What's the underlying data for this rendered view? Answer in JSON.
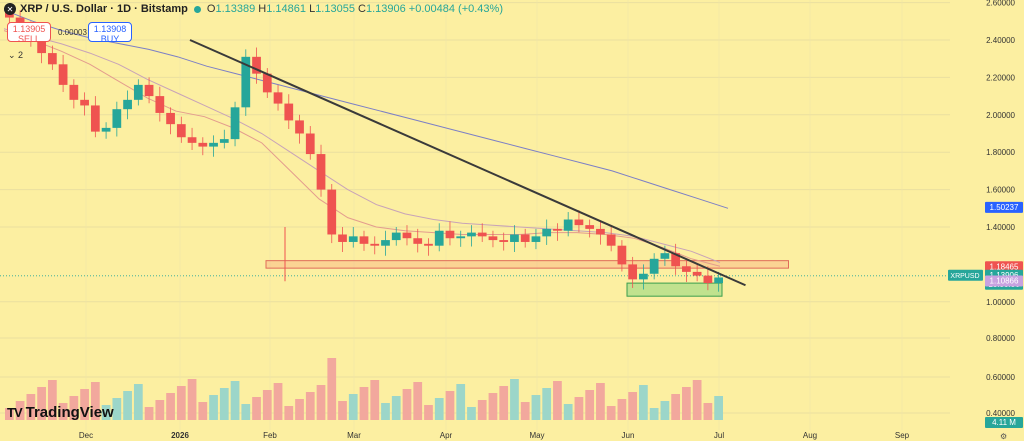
{
  "header": {
    "title": "XRP / U.S. Dollar · 1D · Bitstamp",
    "symbol_icon": "✕",
    "open": "1.13389",
    "high": "1.14861",
    "low": "1.13055",
    "close": "1.13906",
    "change": "+0.00484 (+0.43%)",
    "labels": {
      "o": "O",
      "h": "H",
      "l": "L",
      "c": "C"
    }
  },
  "trade": {
    "sell_price": "1.13905",
    "sell_label": "SELL",
    "buy_price": "1.13908",
    "buy_label": "BUY",
    "spread": "0.00003"
  },
  "collapse_label": "⌄ 2",
  "logo_text": "TradingView",
  "logo_icon": "tradingview-logo",
  "settings_icon": "gear-icon",
  "colors": {
    "background": "#FCEFA1",
    "up": "#26A69A",
    "down": "#EF5350",
    "trendline": "#3A3A3A",
    "ma_short": "#E39C8E",
    "ma_mid": "#C8A3B8",
    "ma_long": "#7C7FC6"
  },
  "chart_data": {
    "type": "candlestick",
    "y_axis": {
      "ticks": [
        "2.60000",
        "2.40000",
        "2.20000",
        "2.00000",
        "1.80000",
        "1.60000",
        "1.40000",
        "1.00000",
        "0.80000",
        "0.60000",
        "0.40000"
      ],
      "range": [
        0.4,
        2.62
      ]
    },
    "x_axis": {
      "ticks": [
        "Dec",
        "2026",
        "Feb",
        "Mar",
        "Apr",
        "May",
        "Jun",
        "Jul",
        "Aug",
        "Sep"
      ]
    },
    "price_labels": [
      {
        "value": "1.50237",
        "color": "#2962FF",
        "y": 1.50237
      },
      {
        "value": "1.18465",
        "color": "#EF5350",
        "y": 1.18465
      },
      {
        "value": "1.13906",
        "color": "#26A69A",
        "y": 1.13906,
        "tag": "XRPUSD",
        "countdown": "13:30:36"
      },
      {
        "value": "1.10866",
        "color": "#C8A2E0",
        "y": 1.10866
      },
      {
        "value": "4.11 M",
        "color": "#26A69A",
        "y": 0.39
      }
    ],
    "series_close": [
      2.52,
      2.45,
      2.41,
      2.33,
      2.27,
      2.16,
      2.08,
      2.05,
      1.91,
      1.93,
      2.03,
      2.08,
      2.16,
      2.1,
      2.01,
      1.95,
      1.88,
      1.85,
      1.83,
      1.85,
      1.87,
      2.04,
      2.31,
      2.22,
      2.12,
      2.06,
      1.97,
      1.9,
      1.79,
      1.6,
      1.36,
      1.32,
      1.35,
      1.31,
      1.3,
      1.33,
      1.37,
      1.34,
      1.31,
      1.3,
      1.38,
      1.34,
      1.35,
      1.37,
      1.35,
      1.33,
      1.32,
      1.36,
      1.32,
      1.35,
      1.39,
      1.38,
      1.44,
      1.41,
      1.39,
      1.36,
      1.3,
      1.2,
      1.12,
      1.15,
      1.23,
      1.26,
      1.19,
      1.16,
      1.14,
      1.1,
      1.13
    ],
    "moving_averages": [
      {
        "name": "MA short",
        "values": [
          2.45,
          2.4,
          2.34,
          2.27,
          2.18,
          2.09,
          2.02,
          1.99,
          1.93,
          1.85,
          1.7,
          1.55,
          1.45,
          1.4,
          1.38,
          1.37,
          1.36,
          1.36,
          1.36,
          1.37,
          1.37,
          1.36,
          1.34,
          1.29,
          1.23,
          1.19
        ]
      },
      {
        "name": "MA mid",
        "values": [
          2.46,
          2.42,
          2.38,
          2.33,
          2.27,
          2.19,
          2.12,
          2.05,
          1.98,
          1.9,
          1.8,
          1.7,
          1.6,
          1.52,
          1.47,
          1.44,
          1.42,
          1.41,
          1.4,
          1.39,
          1.38,
          1.37,
          1.35,
          1.31,
          1.27,
          1.21
        ]
      },
      {
        "name": "MA long",
        "values": [
          2.56,
          2.5,
          2.45,
          2.41,
          2.38,
          2.35,
          2.31,
          2.26,
          2.22,
          2.18,
          2.14,
          2.1,
          2.06,
          2.02,
          1.98,
          1.94,
          1.9,
          1.86,
          1.82,
          1.78,
          1.74,
          1.7,
          1.65,
          1.6,
          1.55,
          1.5
        ]
      }
    ],
    "trendline": [
      {
        "x": 0.2,
        "y": 2.4
      },
      {
        "x": 0.77,
        "y": 1.11
      }
    ],
    "zones": [
      {
        "name": "resistance-zone",
        "from": 1.18,
        "to": 1.22,
        "x_from": 0.28,
        "x_to": 0.83
      },
      {
        "name": "support-zone",
        "from": 1.03,
        "to": 1.1,
        "x_from": 0.66,
        "x_to": 0.76
      }
    ]
  }
}
